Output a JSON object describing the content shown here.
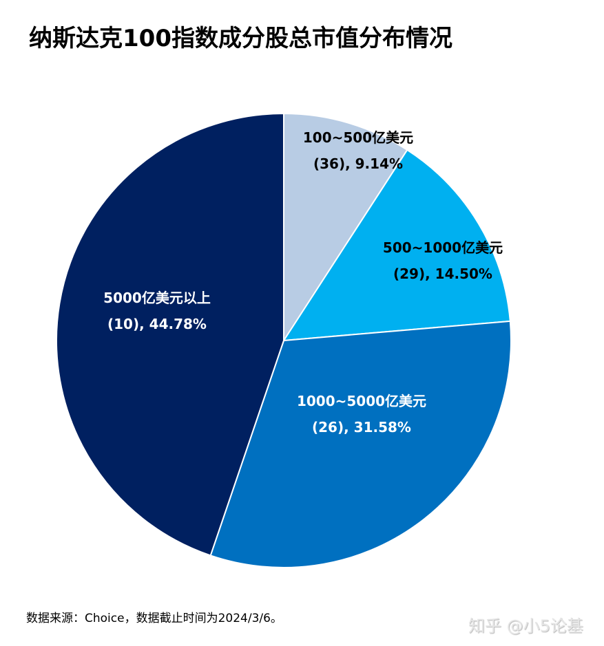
{
  "chart_data": {
    "type": "pie",
    "title": "纳斯达克100指数成分股总市值分布情况",
    "start": "top",
    "direction": "clockwise",
    "slices": [
      {
        "label": "100~500亿美元",
        "count": "(36)",
        "value": 9.14,
        "value_label": "(36), 9.14%",
        "color": "#B8CCE4",
        "text_color": "#000000"
      },
      {
        "label": "500~1000亿美元",
        "count": "(29)",
        "value": 14.5,
        "value_label": "(29), 14.50%",
        "color": "#00B0F0",
        "text_color": "#000000"
      },
      {
        "label": "1000~5000亿美元",
        "count": "(26)",
        "value": 31.58,
        "value_label": "(26), 31.58%",
        "color": "#0070C0",
        "text_color": "#FFFFFF"
      },
      {
        "label": "5000亿美元以上",
        "count": "(10)",
        "value": 44.78,
        "value_label": "(10), 44.78%",
        "color": "#002060",
        "text_color": "#FFFFFF"
      }
    ]
  },
  "footer": {
    "source": "数据来源：Choice，数据截止时间为2024/3/6。",
    "watermark": "知乎 @小5论基"
  }
}
